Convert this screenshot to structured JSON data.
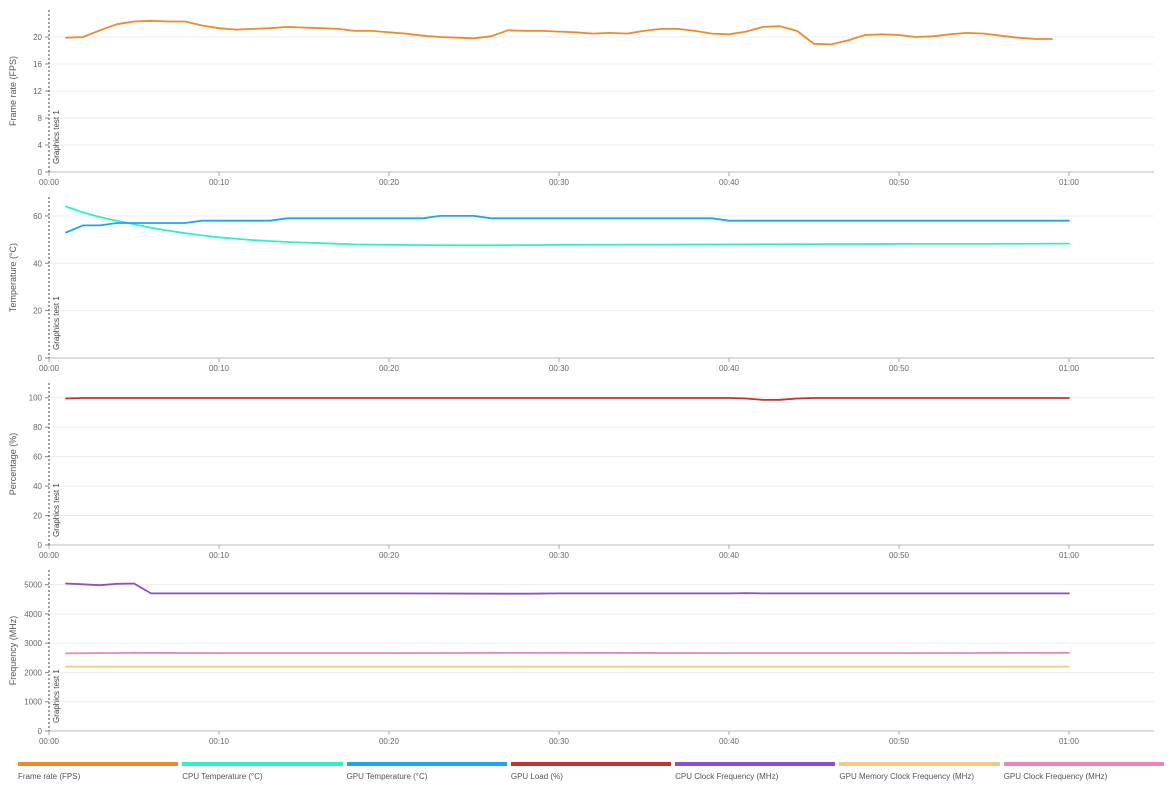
{
  "chart_data": [
    {
      "type": "line",
      "ylabel": "Frame rate (FPS)",
      "ylim": [
        0,
        24
      ],
      "yticks": [
        0,
        4,
        8,
        12,
        16,
        20
      ],
      "marker": "Graphics test 1",
      "series": [
        {
          "name": "Frame rate (FPS)",
          "color": "#ee8a2c",
          "x": [
            1,
            2,
            3,
            4,
            5,
            6,
            7,
            8,
            9,
            10,
            11,
            12,
            13,
            14,
            15,
            16,
            17,
            18,
            19,
            20,
            21,
            22,
            23,
            24,
            25,
            26,
            27,
            28,
            29,
            30,
            31,
            32,
            33,
            34,
            35,
            36,
            37,
            38,
            39,
            40,
            41,
            42,
            43,
            44,
            45,
            46,
            47,
            48,
            49,
            50,
            51,
            52,
            53,
            54,
            55,
            56,
            57,
            58,
            59
          ],
          "y": [
            19.9,
            20.0,
            21.0,
            21.9,
            22.3,
            22.4,
            22.3,
            22.3,
            21.7,
            21.3,
            21.1,
            21.2,
            21.3,
            21.5,
            21.4,
            21.3,
            21.2,
            20.9,
            20.9,
            20.7,
            20.5,
            20.2,
            20.0,
            19.9,
            19.8,
            20.1,
            21.0,
            20.9,
            20.9,
            20.8,
            20.7,
            20.5,
            20.6,
            20.5,
            20.9,
            21.2,
            21.2,
            20.9,
            20.5,
            20.4,
            20.8,
            21.5,
            21.6,
            20.9,
            19.0,
            18.9,
            19.5,
            20.3,
            20.4,
            20.3,
            20.0,
            20.1,
            20.4,
            20.6,
            20.5,
            20.2,
            19.9,
            19.7,
            19.7
          ]
        }
      ]
    },
    {
      "type": "line",
      "ylabel": "Temperature (°C)",
      "ylim": [
        0,
        68
      ],
      "yticks": [
        0,
        20,
        40,
        60
      ],
      "marker": "Graphics test 1",
      "series": [
        {
          "name": "CPU Temperature (°C)",
          "color": "#2ef2c4",
          "x": [
            1,
            2,
            3,
            4,
            5,
            6,
            7,
            8,
            9,
            10,
            12,
            14,
            16,
            18,
            20,
            22,
            24,
            26,
            28,
            30,
            35,
            40,
            45,
            50,
            55,
            60
          ],
          "y": [
            64,
            61.5,
            59.5,
            58,
            56.5,
            55,
            53.8,
            52.7,
            51.8,
            51,
            49.8,
            49,
            48.5,
            48,
            47.8,
            47.7,
            47.6,
            47.6,
            47.7,
            47.8,
            47.9,
            48,
            48.1,
            48.2,
            48.2,
            48.3
          ]
        },
        {
          "name": "GPU Temperature (°C)",
          "color": "#1ea5ef",
          "x": [
            1,
            2,
            3,
            4,
            5,
            6,
            7,
            8,
            9,
            10,
            11,
            12,
            13,
            14,
            15,
            16,
            17,
            18,
            19,
            20,
            21,
            22,
            23,
            24,
            25,
            26,
            27,
            28,
            29,
            30,
            31,
            32,
            33,
            34,
            35,
            36,
            37,
            38,
            39,
            40,
            41,
            42,
            43,
            44,
            45,
            46,
            47,
            48,
            49,
            50,
            51,
            52,
            53,
            54,
            55,
            56,
            57,
            58,
            59,
            60
          ],
          "y": [
            53,
            56,
            56,
            57,
            57,
            57,
            57,
            57,
            58,
            58,
            58,
            58,
            58,
            59,
            59,
            59,
            59,
            59,
            59,
            59,
            59,
            59,
            60,
            60,
            60,
            59,
            59,
            59,
            59,
            59,
            59,
            59,
            59,
            59,
            59,
            59,
            59,
            59,
            59,
            58,
            58,
            58,
            58,
            58,
            58,
            58,
            58,
            58,
            58,
            58,
            58,
            58,
            58,
            58,
            58,
            58,
            58,
            58,
            58,
            58
          ]
        }
      ]
    },
    {
      "type": "line",
      "ylabel": "Percentage (%)",
      "ylim": [
        0,
        110
      ],
      "yticks": [
        0,
        20,
        40,
        60,
        80,
        100
      ],
      "marker": "Graphics test 1",
      "series": [
        {
          "name": "GPU Load (%)",
          "color": "#c53030",
          "x": [
            1,
            2,
            10,
            20,
            30,
            40,
            41,
            42,
            43,
            44,
            45,
            50,
            55,
            60
          ],
          "y": [
            99.5,
            99.8,
            99.8,
            99.8,
            99.8,
            99.8,
            99.5,
            98.5,
            98.6,
            99.5,
            99.8,
            99.8,
            99.8,
            99.8
          ]
        }
      ]
    },
    {
      "type": "line",
      "ylabel": "Frequency (MHz)",
      "ylim": [
        0,
        5500
      ],
      "yticks": [
        0,
        1000,
        2000,
        3000,
        4000,
        5000
      ],
      "marker": "Graphics test 1",
      "series": [
        {
          "name": "CPU Clock Frequency (MHz)",
          "color": "#8e4fc8",
          "x": [
            1,
            2,
            3,
            4,
            5,
            6,
            10,
            20,
            28,
            30,
            40,
            41,
            42,
            50,
            60
          ],
          "y": [
            5040,
            5010,
            4980,
            5030,
            5040,
            4700,
            4700,
            4700,
            4690,
            4700,
            4700,
            4710,
            4700,
            4700,
            4700
          ]
        },
        {
          "name": "GPU Memory Clock Frequency (MHz)",
          "color": "#f2c883",
          "x": [
            1,
            60
          ],
          "y": [
            2200,
            2200
          ]
        },
        {
          "name": "GPU Clock Frequency (MHz)",
          "color": "#ea86b1",
          "x": [
            1,
            5,
            10,
            20,
            30,
            40,
            50,
            60
          ],
          "y": [
            2650,
            2670,
            2660,
            2660,
            2670,
            2660,
            2660,
            2670
          ]
        }
      ]
    }
  ],
  "xaxis": {
    "range": [
      0,
      65
    ],
    "ticks": [
      0,
      10,
      20,
      30,
      40,
      50,
      60
    ],
    "tick_labels": [
      "00:00",
      "00:10",
      "00:20",
      "00:30",
      "00:40",
      "00:50",
      "01:00"
    ]
  },
  "legend": [
    {
      "label": "Frame rate (FPS)",
      "color": "#ee8a2c"
    },
    {
      "label": "CPU Temperature (°C)",
      "color": "#2ef2c4"
    },
    {
      "label": "GPU Temperature (°C)",
      "color": "#1ea5ef"
    },
    {
      "label": "GPU Load (%)",
      "color": "#c53030"
    },
    {
      "label": "CPU Clock Frequency (MHz)",
      "color": "#8e4fc8"
    },
    {
      "label": "GPU Memory Clock Frequency (MHz)",
      "color": "#f2c883"
    },
    {
      "label": "GPU Clock Frequency (MHz)",
      "color": "#ea86b1"
    }
  ]
}
